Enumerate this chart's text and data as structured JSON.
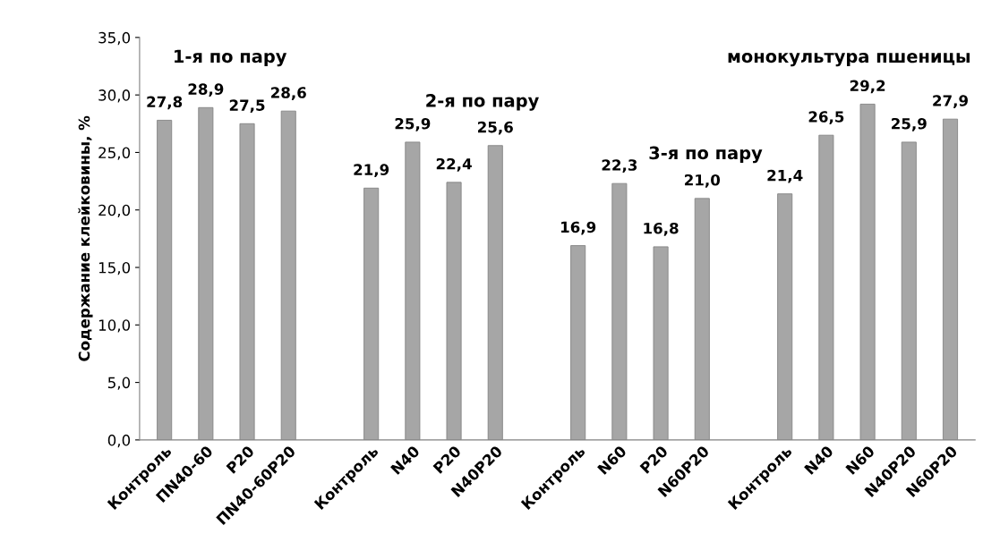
{
  "chart_data": {
    "type": "bar",
    "ylabel": "Содержание клейковины, %",
    "categories": [
      "Контроль",
      "ПN40-60",
      "P20",
      "ПN40-60P20",
      null,
      "Контроль",
      "N40",
      "P20",
      "N40P20",
      null,
      "Контроль",
      "N60",
      "P20",
      "N60P20",
      null,
      "Контроль",
      "N40",
      "N60",
      "N40P20",
      "N60P20"
    ],
    "values": [
      27.8,
      28.9,
      27.5,
      28.6,
      null,
      21.9,
      25.9,
      22.4,
      25.6,
      null,
      16.9,
      22.3,
      16.8,
      21.0,
      null,
      21.4,
      26.5,
      29.2,
      25.9,
      27.9
    ],
    "value_labels": [
      "27,8",
      "28,9",
      "27,5",
      "28,6",
      null,
      "21,9",
      "25,9",
      "22,4",
      "25,6",
      null,
      "16,9",
      "22,3",
      "16,8",
      "21,0",
      null,
      "21,4",
      "26,5",
      "29,2",
      "25,9",
      "27,9"
    ],
    "color": "#a6a6a6",
    "ylim": [
      0,
      35
    ],
    "yticks": [
      {
        "value": 0,
        "label": "0,0"
      },
      {
        "value": 5,
        "label": "5,0"
      },
      {
        "value": 10,
        "label": "10,0"
      },
      {
        "value": 15,
        "label": "15,0"
      },
      {
        "value": 20,
        "label": "20,0"
      },
      {
        "value": 25,
        "label": "25,0"
      },
      {
        "value": 30,
        "label": "30,0"
      },
      {
        "value": 35,
        "label": "35,0"
      }
    ],
    "grid": false,
    "annotations": [
      "1-я по пару",
      "2-я по пару",
      "3-я по пару",
      "монокультура пшеницы"
    ]
  }
}
